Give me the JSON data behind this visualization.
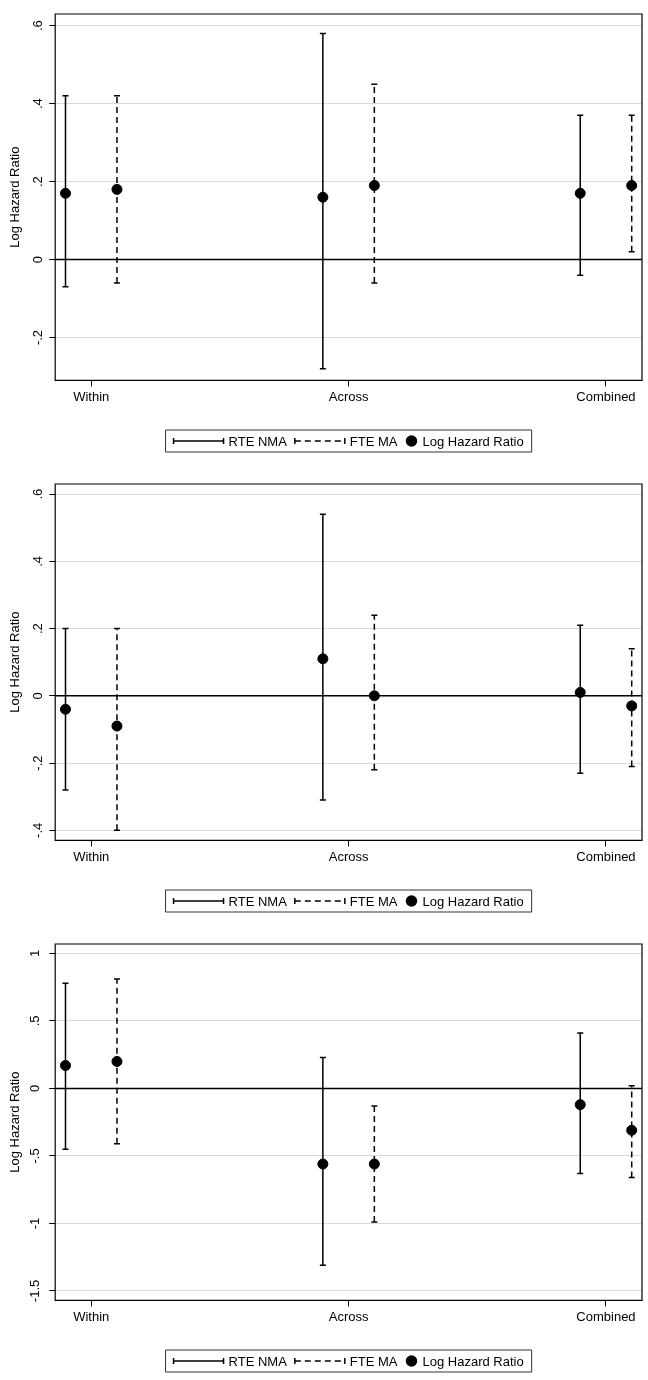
{
  "chart_data": [
    {
      "type": "scatter",
      "ylabel": "Log Hazard Ratio",
      "categories": [
        "Within",
        "Across",
        "Combined"
      ],
      "ylim": [
        -0.31,
        0.63
      ],
      "yticks": [
        {
          "value": -0.2,
          "label": "-.2"
        },
        0,
        {
          "value": 0.2,
          "label": ".2"
        },
        {
          "value": 0.4,
          "label": ".4"
        },
        {
          "value": 0.6,
          "label": ".6"
        }
      ],
      "grid": "y",
      "legend": "bottom",
      "ref_lines": [
        {
          "axis": "y",
          "value": 0,
          "color": "#000000"
        }
      ],
      "series": [
        {
          "name": "RTE NMA",
          "color": "#000000",
          "marker": "circle",
          "line_style": "solid",
          "values": [
            0.17,
            0.16,
            0.17
          ],
          "errors": [
            [
              -0.07,
              0.42
            ],
            [
              -0.28,
              0.58
            ],
            [
              -0.04,
              0.37
            ]
          ]
        },
        {
          "name": "FTE MA",
          "color": "#000000",
          "marker": "circle",
          "line_style": "dashed",
          "values": [
            0.18,
            0.19,
            0.19
          ],
          "errors": [
            [
              -0.06,
              0.42
            ],
            [
              -0.06,
              0.45
            ],
            [
              0.02,
              0.37
            ]
          ]
        },
        {
          "name": "Log Hazard Ratio",
          "color": "#000000",
          "marker": "circle",
          "values": [
            null,
            null,
            null
          ]
        }
      ]
    },
    {
      "type": "scatter",
      "ylabel": "Log Hazard Ratio",
      "categories": [
        "Within",
        "Across",
        "Combined"
      ],
      "ylim": [
        -0.43,
        0.63
      ],
      "yticks": [
        {
          "value": -0.4,
          "label": "-.4"
        },
        {
          "value": -0.2,
          "label": "-.2"
        },
        0,
        {
          "value": 0.2,
          "label": ".2"
        },
        {
          "value": 0.4,
          "label": ".4"
        },
        {
          "value": 0.6,
          "label": ".6"
        }
      ],
      "grid": "y",
      "legend": "bottom",
      "ref_lines": [
        {
          "axis": "y",
          "value": 0,
          "color": "#000000"
        }
      ],
      "series": [
        {
          "name": "RTE NMA",
          "color": "#000000",
          "marker": "circle",
          "line_style": "solid",
          "values": [
            -0.04,
            0.11,
            0.01
          ],
          "errors": [
            [
              -0.28,
              0.2
            ],
            [
              -0.31,
              0.54
            ],
            [
              -0.23,
              0.21
            ]
          ]
        },
        {
          "name": "FTE MA",
          "color": "#000000",
          "marker": "circle",
          "line_style": "dashed",
          "values": [
            -0.09,
            0,
            -0.03
          ],
          "errors": [
            [
              -0.4,
              0.2
            ],
            [
              -0.22,
              0.24
            ],
            [
              -0.21,
              0.14
            ]
          ]
        },
        {
          "name": "Log Hazard Ratio",
          "color": "#000000",
          "marker": "circle",
          "values": [
            null,
            null,
            null
          ]
        }
      ]
    },
    {
      "type": "scatter",
      "ylabel": "Log Hazard Ratio",
      "categories": [
        "Within",
        "Across",
        "Combined"
      ],
      "ylim": [
        -1.57,
        1.07
      ],
      "yticks": [
        {
          "value": -1.5,
          "label": "-1.5"
        },
        -1,
        {
          "value": -0.5,
          "label": "-.5"
        },
        0,
        {
          "value": 0.5,
          "label": ".5"
        },
        1
      ],
      "grid": "y",
      "legend": "bottom",
      "ref_lines": [
        {
          "axis": "y",
          "value": 0,
          "color": "#000000"
        }
      ],
      "series": [
        {
          "name": "RTE NMA",
          "color": "#000000",
          "marker": "circle",
          "line_style": "solid",
          "values": [
            0.17,
            -0.56,
            -0.12
          ],
          "errors": [
            [
              -0.45,
              0.78
            ],
            [
              -1.31,
              0.23
            ],
            [
              -0.63,
              0.41
            ]
          ]
        },
        {
          "name": "FTE MA",
          "color": "#000000",
          "marker": "circle",
          "line_style": "dashed",
          "values": [
            0.2,
            -0.56,
            -0.31
          ],
          "errors": [
            [
              -0.41,
              0.81
            ],
            [
              -0.99,
              -0.13
            ],
            [
              -0.66,
              0.02
            ]
          ]
        },
        {
          "name": "Log Hazard Ratio",
          "color": "#000000",
          "marker": "circle",
          "values": [
            null,
            null,
            null
          ]
        }
      ]
    }
  ]
}
